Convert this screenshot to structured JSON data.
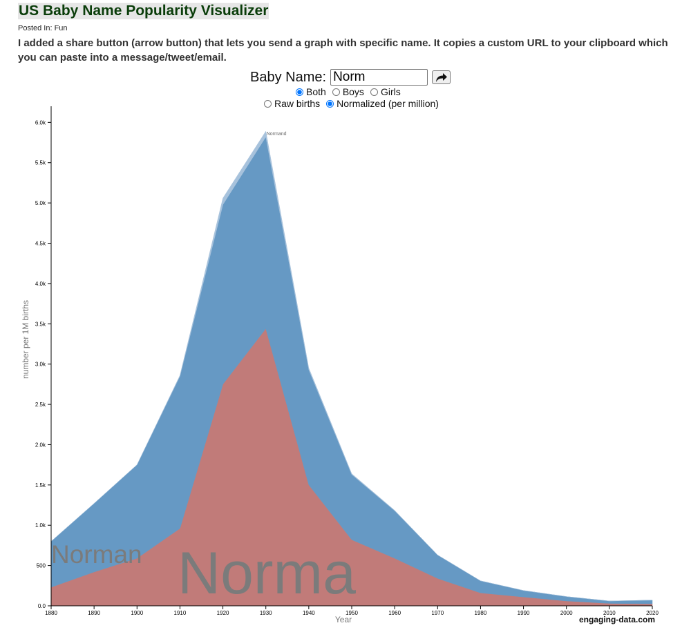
{
  "page": {
    "title": "US Baby Name Popularity Visualizer",
    "posted": "Posted In: Fun",
    "intro": "I added a share button (arrow button) that lets you send a graph with specific name. It copies a custom URL to your clipboard which you can paste into a message/tweet/email.",
    "brand": "engaging-data.com"
  },
  "controls": {
    "name_label": "Baby Name:",
    "name_value": "Norm",
    "share_icon": "share-arrow-icon",
    "sex_options": [
      {
        "label": "Both",
        "checked": true
      },
      {
        "label": "Boys",
        "checked": false
      },
      {
        "label": "Girls",
        "checked": false
      }
    ],
    "scale_options": [
      {
        "label": "Raw births",
        "checked": false
      },
      {
        "label": "Normalized (per million)",
        "checked": true
      }
    ]
  },
  "chart_data": {
    "type": "area",
    "stacked": true,
    "xlabel": "Year",
    "ylabel": "number per 1M births",
    "xlim": [
      1880,
      2020
    ],
    "ylim": [
      0,
      6200
    ],
    "x_ticks": [
      1880,
      1890,
      1900,
      1910,
      1920,
      1930,
      1940,
      1950,
      1960,
      1970,
      1980,
      1990,
      2000,
      2010,
      2020
    ],
    "y_ticks": [
      "0.0",
      "500",
      "1.0k",
      "1.5k",
      "2.0k",
      "2.5k",
      "3.0k",
      "3.5k",
      "4.0k",
      "4.5k",
      "5.0k",
      "5.5k",
      "6.0k"
    ],
    "y_tick_values": [
      0,
      500,
      1000,
      1500,
      2000,
      2500,
      3000,
      3500,
      4000,
      4500,
      5000,
      5500,
      6000
    ],
    "series": [
      {
        "name": "Norma",
        "color": "#c17b79",
        "points": [
          [
            1880,
            230
          ],
          [
            1890,
            420
          ],
          [
            1900,
            590
          ],
          [
            1910,
            960
          ],
          [
            1920,
            2750
          ],
          [
            1930,
            3440
          ],
          [
            1940,
            1500
          ],
          [
            1950,
            820
          ],
          [
            1960,
            590
          ],
          [
            1970,
            340
          ],
          [
            1980,
            160
          ],
          [
            1990,
            110
          ],
          [
            2000,
            60
          ],
          [
            2010,
            30
          ],
          [
            2020,
            25
          ]
        ]
      },
      {
        "name": "Norman",
        "color": "#6699c4",
        "points": [
          [
            1880,
            570
          ],
          [
            1890,
            850
          ],
          [
            1900,
            1160
          ],
          [
            1910,
            1890
          ],
          [
            1920,
            2230
          ],
          [
            1930,
            2380
          ],
          [
            1940,
            1430
          ],
          [
            1950,
            810
          ],
          [
            1960,
            590
          ],
          [
            1970,
            290
          ],
          [
            1980,
            150
          ],
          [
            1990,
            80
          ],
          [
            2000,
            55
          ],
          [
            2010,
            30
          ],
          [
            2020,
            45
          ]
        ]
      },
      {
        "name": "Normand",
        "color": "#a7c2dc",
        "points": [
          [
            1880,
            0
          ],
          [
            1890,
            0
          ],
          [
            1900,
            0
          ],
          [
            1910,
            10
          ],
          [
            1920,
            80
          ],
          [
            1930,
            70
          ],
          [
            1940,
            20
          ],
          [
            1950,
            10
          ],
          [
            1960,
            5
          ],
          [
            1970,
            0
          ],
          [
            1980,
            0
          ],
          [
            1990,
            0
          ],
          [
            2000,
            0
          ],
          [
            2010,
            0
          ],
          [
            2020,
            0
          ]
        ]
      }
    ]
  }
}
